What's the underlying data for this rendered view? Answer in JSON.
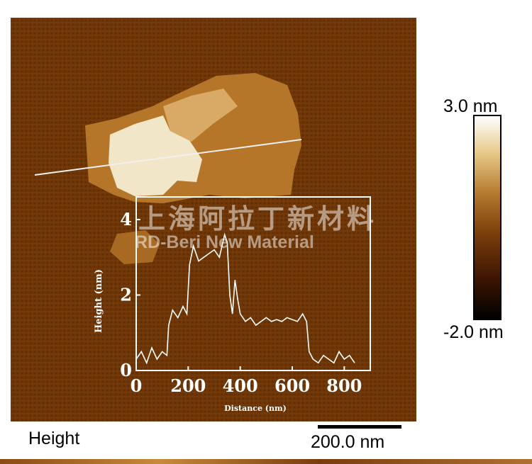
{
  "chart_data": {
    "type": "line",
    "title": "",
    "xlabel": "Distance (nm)",
    "ylabel": "Height (nm)",
    "xlim": [
      0,
      900
    ],
    "ylim": [
      0,
      4.6
    ],
    "x_ticks": [
      "0",
      "200",
      "400",
      "600",
      "800"
    ],
    "y_ticks": [
      "0",
      "2",
      "4"
    ],
    "series": [
      {
        "x": [
          0,
          20,
          40,
          60,
          80,
          100,
          118,
          125,
          140,
          160,
          180,
          195,
          205,
          220,
          240,
          260,
          280,
          300,
          320,
          340,
          350,
          360,
          370,
          380,
          390,
          400,
          420,
          440,
          460,
          480,
          500,
          520,
          540,
          560,
          580,
          600,
          620,
          640,
          655,
          665,
          680,
          700,
          720,
          740,
          760,
          780,
          800,
          820,
          840
        ],
        "y": [
          0.3,
          0.5,
          0.2,
          0.6,
          0.3,
          0.5,
          0.4,
          1.2,
          1.6,
          1.4,
          1.7,
          1.5,
          2.8,
          3.3,
          2.9,
          3.0,
          3.1,
          3.2,
          3.0,
          3.6,
          3.4,
          2.0,
          1.5,
          2.4,
          1.9,
          1.5,
          1.3,
          1.4,
          1.2,
          1.3,
          1.4,
          1.3,
          1.35,
          1.3,
          1.4,
          1.35,
          1.3,
          1.5,
          1.3,
          0.5,
          0.3,
          0.2,
          0.4,
          0.3,
          0.2,
          0.5,
          0.3,
          0.4,
          0.2
        ]
      }
    ],
    "colorbar": {
      "max_label": "3.0 nm",
      "min_label": "-2.0 nm",
      "max": 3.0,
      "min": -2.0
    },
    "channel_label": "Height",
    "scale_bar_label": "200.0 nm",
    "watermark_cn": "上海阿拉丁新材料",
    "watermark_en": "RD-Beri New Material",
    "colors": {
      "background": "#6b3406",
      "flake": "#b6782a",
      "thick": "#f4ead0",
      "trace": "#ffffff"
    }
  }
}
